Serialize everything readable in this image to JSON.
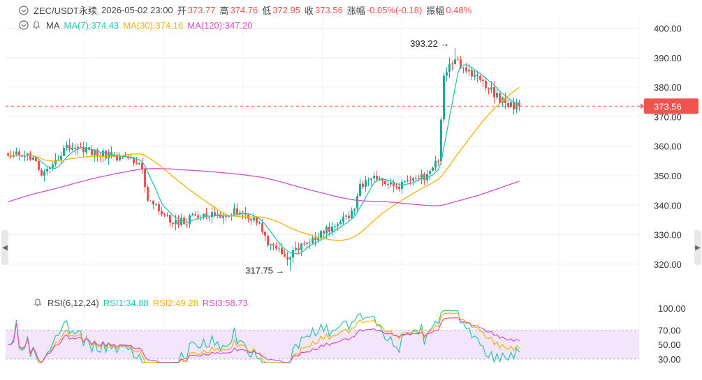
{
  "header": {
    "symbol": "ZEC/USDT永续",
    "datetime": "2026-05-02 23:00",
    "open_label": "开",
    "open": "373.77",
    "high_label": "高",
    "high": "374.76",
    "low_label": "低",
    "low": "372.95",
    "close_label": "收",
    "close": "373.56",
    "change_label": "涨幅",
    "change": "-0.05%(-0.18)",
    "amplitude_label": "振幅",
    "amplitude": "0.48%"
  },
  "ma_legend": {
    "label": "MA",
    "ma7": "MA(7):374.43",
    "ma30": "MA(30):374.16",
    "ma120": "MA(120):347.20"
  },
  "rsi_legend": {
    "label": "RSI(6,12,24)",
    "rsi1": "RSI1:34.88",
    "rsi2": "RSI2:49.28",
    "rsi3": "RSI3:58.73"
  },
  "colors": {
    "up": "#26a69a",
    "down": "#ef5350",
    "ma7": "#26c6b0",
    "ma30": "#f4b400",
    "ma120": "#d24fc4",
    "rsi1": "#26c6b0",
    "rsi2": "#f4b400",
    "rsi3": "#d24fc4",
    "rsi_band": "#f3e5fb",
    "last_price": "#ef5350"
  },
  "chart_data": [
    {
      "type": "candlestick",
      "ylim": [
        315,
        402
      ],
      "price_ticks": [
        "400.00",
        "390.00",
        "380.00",
        "370.00",
        "360.00",
        "350.00",
        "340.00",
        "330.00",
        "320.00"
      ],
      "last_price": "373.56",
      "annotations": [
        {
          "text": "393.22",
          "value": 393.22,
          "position": "high"
        },
        {
          "text": "317.75",
          "value": 317.75,
          "position": "low"
        }
      ],
      "anchors": [
        [
          0,
          357.5
        ],
        [
          8,
          356
        ],
        [
          12,
          351
        ],
        [
          16,
          355
        ],
        [
          22,
          360
        ],
        [
          26,
          359
        ],
        [
          32,
          358
        ],
        [
          38,
          356
        ],
        [
          44,
          355
        ],
        [
          48,
          353
        ],
        [
          50,
          342
        ],
        [
          56,
          336
        ],
        [
          60,
          334
        ],
        [
          68,
          336
        ],
        [
          76,
          337
        ],
        [
          82,
          338
        ],
        [
          86,
          336
        ],
        [
          90,
          333
        ],
        [
          94,
          326
        ],
        [
          100,
          322
        ],
        [
          106,
          327
        ],
        [
          110,
          329
        ],
        [
          118,
          334
        ],
        [
          124,
          338
        ],
        [
          126,
          346
        ],
        [
          130,
          350
        ],
        [
          134,
          348
        ],
        [
          138,
          346
        ],
        [
          144,
          349
        ],
        [
          150,
          350
        ],
        [
          154,
          355
        ],
        [
          156,
          384
        ],
        [
          160,
          389
        ],
        [
          164,
          385
        ],
        [
          168,
          383
        ],
        [
          172,
          380
        ],
        [
          176,
          376
        ],
        [
          180,
          373.5
        ],
        [
          183,
          373.56
        ]
      ],
      "series": [
        {
          "name": "MA(7)",
          "period": 7
        },
        {
          "name": "MA(30)",
          "period": 30
        },
        {
          "name": "MA(120)",
          "period": 120
        }
      ]
    },
    {
      "type": "line",
      "ylim": [
        25,
        105
      ],
      "rsi_ticks": [
        "100.00",
        "70.00",
        "50.00",
        "30.00"
      ],
      "band": [
        30,
        70
      ],
      "series": [
        {
          "name": "RSI1",
          "period": 6
        },
        {
          "name": "RSI2",
          "period": 12
        },
        {
          "name": "RSI3",
          "period": 24
        }
      ]
    }
  ]
}
